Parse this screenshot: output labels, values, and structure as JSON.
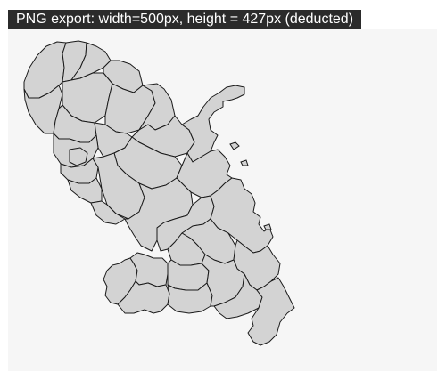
{
  "export_label": "PNG export: width=500px, height = 427px (deducted)",
  "map": {
    "fill_color": "#d3d3d3",
    "stroke_color": "#1a1a1a",
    "background_color": "#f6f6f6"
  }
}
